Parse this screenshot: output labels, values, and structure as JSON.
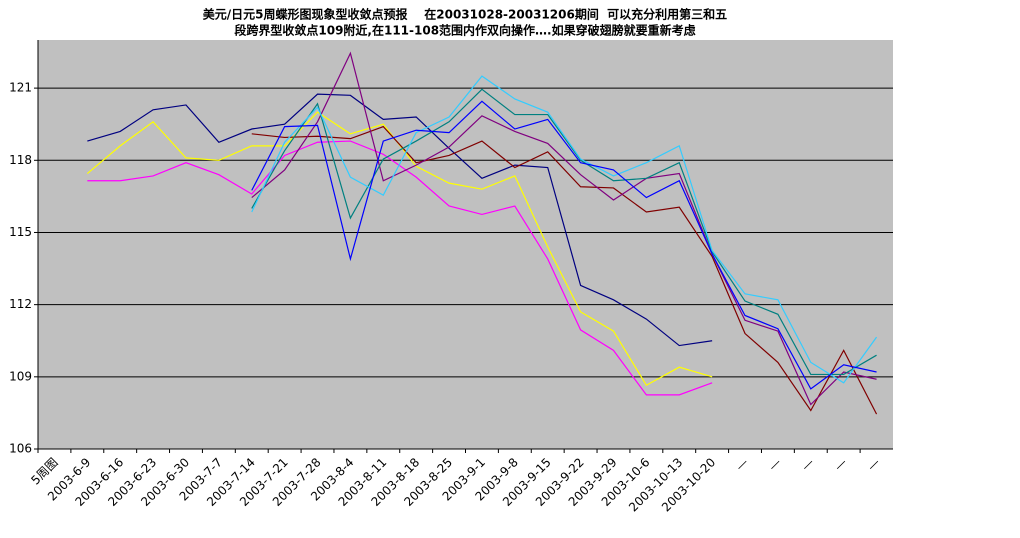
{
  "chart_data": {
    "type": "line",
    "title": "美元/日元5周蝶形图现象型收敛点预报    在20031028-20031206期间  可以充分利用第三和五",
    "subtitle": "段跨界型收敛点109附近,在111-108范围内作双向操作….如果穿破翅膀就要重新考虑",
    "categories": [
      "5周图",
      "2003-6-9",
      "2003-6-16",
      "2003-6-23",
      "2003-6-30",
      "2003-7-7",
      "2003-7-14",
      "2003-7-21",
      "2003-7-28",
      "2003-8-4",
      "2003-8-11",
      "2003-8-18",
      "2003-8-25",
      "2003-9-1",
      "2003-9-8",
      "2003-9-15",
      "2003-9-22",
      "2003-9-29",
      "2003-10-6",
      "2003-10-13",
      "2003-10-20",
      "—",
      "—",
      "—",
      "—",
      "—"
    ],
    "ylim": [
      106,
      123
    ],
    "yticks": [
      106,
      109,
      112,
      115,
      118,
      121
    ],
    "grid": true,
    "background": "#c0c0c0",
    "series": [
      {
        "color": "#000080",
        "values": [
          null,
          118.8,
          119.2,
          120.1,
          120.3,
          118.75,
          119.3,
          119.5,
          120.75,
          120.7,
          119.7,
          119.8,
          118.5,
          117.25,
          117.8,
          117.7,
          112.8,
          112.2,
          111.4,
          110.3,
          110.5,
          null,
          null,
          null,
          null,
          null
        ]
      },
      {
        "color": "#ffff00",
        "values": [
          null,
          117.45,
          118.6,
          119.6,
          118.1,
          118.0,
          118.6,
          118.6,
          120.0,
          119.1,
          119.5,
          117.75,
          117.05,
          116.8,
          117.35,
          114.4,
          111.7,
          110.9,
          108.65,
          109.4,
          109.0,
          null,
          null,
          null,
          null,
          null
        ]
      },
      {
        "color": "#ff00ff",
        "values": [
          null,
          117.15,
          117.15,
          117.35,
          117.9,
          117.4,
          116.6,
          118.2,
          118.75,
          118.8,
          118.25,
          117.3,
          116.1,
          115.75,
          116.1,
          113.9,
          110.95,
          110.1,
          108.25,
          108.25,
          108.75,
          null,
          null,
          null,
          null,
          null
        ]
      },
      {
        "color": "#800000",
        "values": [
          null,
          null,
          null,
          null,
          null,
          null,
          119.1,
          118.95,
          119.0,
          118.9,
          119.4,
          117.9,
          118.2,
          118.8,
          117.7,
          118.35,
          116.9,
          116.85,
          115.85,
          116.05,
          114.0,
          110.8,
          109.6,
          107.6,
          110.1,
          107.45
        ]
      },
      {
        "color": "#800080",
        "values": [
          null,
          null,
          null,
          null,
          null,
          null,
          116.45,
          117.6,
          119.6,
          122.45,
          117.15,
          117.8,
          118.55,
          119.85,
          119.2,
          118.7,
          117.4,
          116.35,
          117.25,
          117.45,
          114.1,
          111.35,
          110.9,
          107.85,
          109.2,
          108.9
        ]
      },
      {
        "color": "#008080",
        "values": [
          null,
          null,
          null,
          null,
          null,
          null,
          116.0,
          118.4,
          120.35,
          115.6,
          118.05,
          118.8,
          119.6,
          120.95,
          119.9,
          119.9,
          118.0,
          117.15,
          117.25,
          117.9,
          114.2,
          112.15,
          111.6,
          109.1,
          109.1,
          109.9
        ]
      },
      {
        "color": "#33ccff",
        "values": [
          null,
          null,
          null,
          null,
          null,
          null,
          115.85,
          118.75,
          120.2,
          117.3,
          116.55,
          119.15,
          119.8,
          121.5,
          120.55,
          120.0,
          118.05,
          117.35,
          117.9,
          118.6,
          114.25,
          112.45,
          112.2,
          109.6,
          108.75,
          110.65
        ]
      },
      {
        "color": "#0000ff",
        "values": [
          null,
          null,
          null,
          null,
          null,
          null,
          116.75,
          119.4,
          119.45,
          113.9,
          118.8,
          119.25,
          119.15,
          120.45,
          119.3,
          119.7,
          117.9,
          117.6,
          116.45,
          117.15,
          114.1,
          111.55,
          111.0,
          108.5,
          109.5,
          109.2
        ]
      }
    ]
  }
}
